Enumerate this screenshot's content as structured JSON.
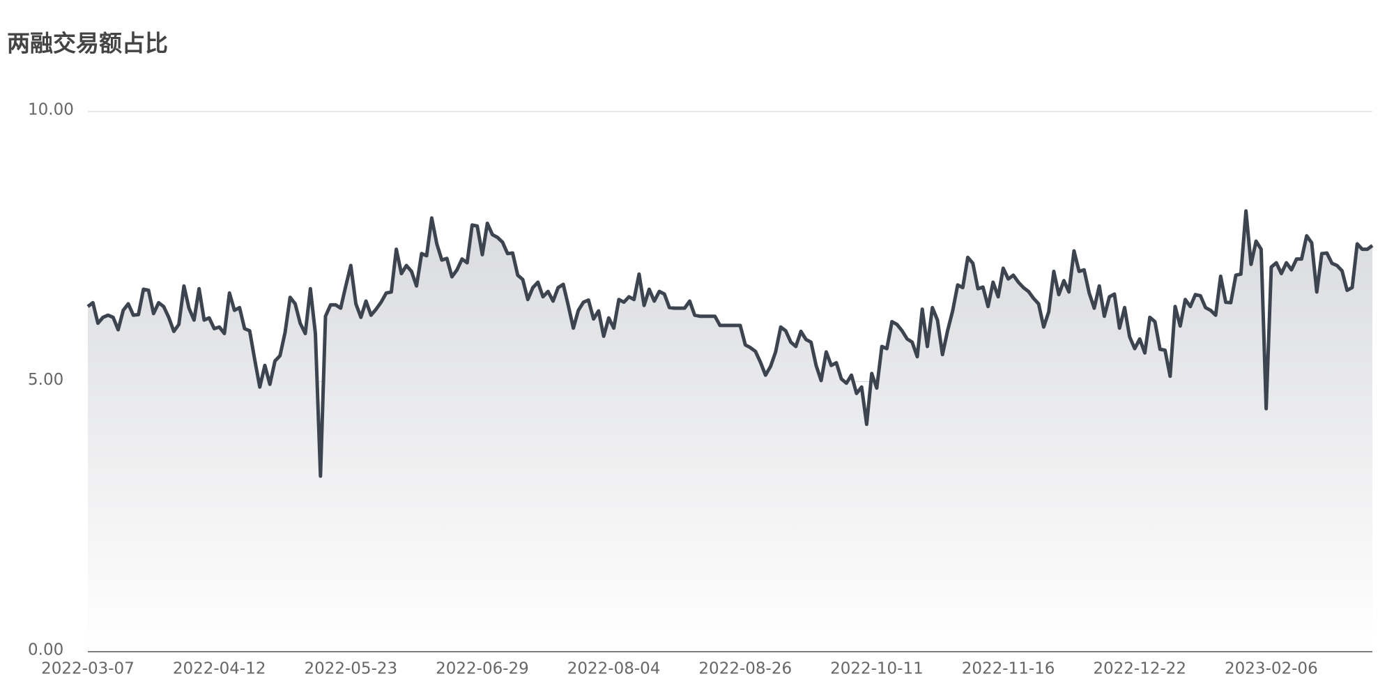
{
  "chart_data": {
    "type": "area",
    "title": "两融交易额占比",
    "color": "#3b444f",
    "ylim": [
      0,
      10
    ],
    "yticks": [
      {
        "value": 0,
        "label": "0.00"
      },
      {
        "value": 5,
        "label": "5.00"
      },
      {
        "value": 10,
        "label": "10.00"
      }
    ],
    "grid": true,
    "categories": [
      "2022-03-07",
      null,
      null,
      null,
      null,
      null,
      null,
      null,
      null,
      null,
      null,
      null,
      null,
      null,
      null,
      null,
      null,
      null,
      null,
      null,
      null,
      null,
      null,
      null,
      null,
      null,
      "2022-04-12",
      null,
      null,
      null,
      null,
      null,
      null,
      null,
      null,
      null,
      null,
      null,
      null,
      null,
      null,
      null,
      null,
      null,
      null,
      null,
      null,
      null,
      null,
      null,
      null,
      null,
      "2022-05-23",
      null,
      null,
      null,
      null,
      null,
      null,
      null,
      null,
      null,
      null,
      null,
      null,
      null,
      null,
      null,
      null,
      null,
      null,
      null,
      null,
      null,
      null,
      null,
      null,
      null,
      "2022-06-29",
      null,
      null,
      null,
      null,
      null,
      null,
      null,
      null,
      null,
      null,
      null,
      null,
      null,
      null,
      null,
      null,
      null,
      null,
      null,
      null,
      null,
      null,
      null,
      null,
      null,
      "2022-08-04",
      null,
      null,
      null,
      null,
      null,
      null,
      null,
      null,
      null,
      null,
      null,
      null,
      null,
      null,
      null,
      null,
      null,
      null,
      null,
      null,
      null,
      null,
      null,
      null,
      null,
      "2022-08-26",
      null,
      null,
      null,
      null,
      null,
      null,
      null,
      null,
      null,
      null,
      null,
      null,
      null,
      null,
      null,
      null,
      null,
      null,
      null,
      null,
      null,
      null,
      null,
      null,
      null,
      "2022-10-11",
      null,
      null,
      null,
      null,
      null,
      null,
      null,
      null,
      null,
      null,
      null,
      null,
      null,
      null,
      null,
      null,
      null,
      null,
      null,
      null,
      null,
      null,
      null,
      null,
      null,
      "2022-11-16",
      null,
      null,
      null,
      null,
      null,
      null,
      null,
      null,
      null,
      null,
      null,
      null,
      null,
      null,
      null,
      null,
      null,
      null,
      null,
      null,
      null,
      null,
      null,
      null,
      null,
      "2022-12-22",
      null,
      null,
      null,
      null,
      null,
      null,
      null,
      null,
      null,
      null,
      null,
      null,
      null,
      null,
      null,
      null,
      null,
      null,
      null,
      null,
      null,
      null,
      null,
      null,
      null,
      "2023-02-06",
      null,
      null,
      null,
      null,
      null,
      null,
      null,
      null,
      null,
      null,
      null,
      null,
      null,
      null,
      null,
      null,
      null,
      null,
      null,
      null
    ],
    "values": [
      6.39,
      6.46,
      6.08,
      6.19,
      6.23,
      6.19,
      5.96,
      6.32,
      6.44,
      6.23,
      6.24,
      6.71,
      6.69,
      6.26,
      6.46,
      6.39,
      6.19,
      5.93,
      6.06,
      6.77,
      6.36,
      6.14,
      6.72,
      6.14,
      6.18,
      5.98,
      6.01,
      5.89,
      6.64,
      6.32,
      6.37,
      5.98,
      5.94,
      5.41,
      4.9,
      5.3,
      4.95,
      5.38,
      5.48,
      5.91,
      6.56,
      6.44,
      6.08,
      5.89,
      6.72,
      5.89,
      3.25,
      6.21,
      6.42,
      6.42,
      6.36,
      6.77,
      7.15,
      6.44,
      6.19,
      6.49,
      6.23,
      6.34,
      6.47,
      6.64,
      6.66,
      7.45,
      7.0,
      7.15,
      7.04,
      6.77,
      7.37,
      7.33,
      8.03,
      7.55,
      7.25,
      7.28,
      6.94,
      7.07,
      7.27,
      7.2,
      7.9,
      7.88,
      7.35,
      7.93,
      7.72,
      7.67,
      7.58,
      7.37,
      7.38,
      6.97,
      6.89,
      6.52,
      6.74,
      6.84,
      6.57,
      6.67,
      6.49,
      6.74,
      6.8,
      6.41,
      5.99,
      6.32,
      6.47,
      6.51,
      6.16,
      6.31,
      5.84,
      6.18,
      5.99,
      6.52,
      6.47,
      6.57,
      6.52,
      6.99,
      6.41,
      6.71,
      6.49,
      6.67,
      6.62,
      6.37,
      6.36,
      6.36,
      6.36,
      6.49,
      6.23,
      6.21,
      6.21,
      6.21,
      6.21,
      6.04,
      6.04,
      6.04,
      6.04,
      6.04,
      5.68,
      5.63,
      5.56,
      5.36,
      5.12,
      5.28,
      5.55,
      6.01,
      5.94,
      5.73,
      5.65,
      5.93,
      5.78,
      5.73,
      5.3,
      5.02,
      5.55,
      5.3,
      5.35,
      5.05,
      4.97,
      5.12,
      4.78,
      4.9,
      4.21,
      5.15,
      4.88,
      5.65,
      5.61,
      6.11,
      6.06,
      5.94,
      5.79,
      5.73,
      5.46,
      6.34,
      5.65,
      6.37,
      6.14,
      5.5,
      5.94,
      6.31,
      6.79,
      6.74,
      7.3,
      7.19,
      6.72,
      6.75,
      6.39,
      6.84,
      6.57,
      7.1,
      6.9,
      6.97,
      6.84,
      6.74,
      6.67,
      6.54,
      6.44,
      6.01,
      6.29,
      7.04,
      6.61,
      6.87,
      6.66,
      7.42,
      7.04,
      7.07,
      6.64,
      6.36,
      6.77,
      6.21,
      6.57,
      6.62,
      5.99,
      6.37,
      5.83,
      5.61,
      5.79,
      5.53,
      6.19,
      6.11,
      5.6,
      5.58,
      5.1,
      6.39,
      6.03,
      6.52,
      6.39,
      6.61,
      6.59,
      6.37,
      6.32,
      6.23,
      6.95,
      6.47,
      6.46,
      6.97,
      6.99,
      8.16,
      7.17,
      7.6,
      7.45,
      4.5,
      7.12,
      7.2,
      7.0,
      7.2,
      7.07,
      7.27,
      7.27,
      7.7,
      7.57,
      6.66,
      7.37,
      7.38,
      7.19,
      7.15,
      7.05,
      6.69,
      6.74,
      7.55,
      7.45,
      7.45,
      7.52
    ]
  }
}
